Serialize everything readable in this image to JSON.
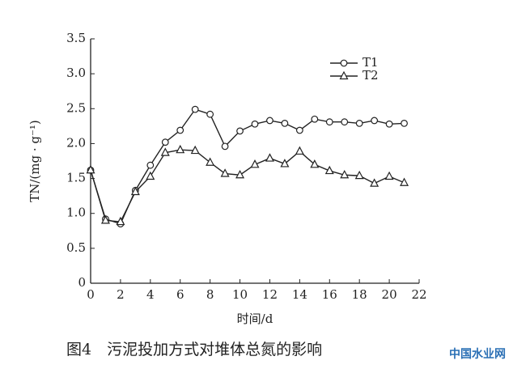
{
  "chart_data": {
    "type": "line",
    "caption": "图4　污泥投加方式对堆体总氮的影响",
    "xlabel": "时间/d",
    "ylabel": "TN/(mg · g⁻¹)",
    "watermark": "中国水业网",
    "x": [
      0,
      1,
      2,
      3,
      4,
      5,
      6,
      7,
      8,
      9,
      10,
      11,
      12,
      13,
      14,
      15,
      16,
      17,
      18,
      19,
      20,
      21
    ],
    "series": [
      {
        "name": "T1",
        "color": "#222222",
        "marker": "circle",
        "values": [
          1.62,
          0.92,
          0.85,
          1.33,
          1.69,
          2.02,
          2.19,
          2.49,
          2.42,
          1.96,
          2.18,
          2.28,
          2.33,
          2.29,
          2.19,
          2.35,
          2.31,
          2.31,
          2.29,
          2.33,
          2.28,
          2.29
        ]
      },
      {
        "name": "T2",
        "color": "#222222",
        "marker": "triangle",
        "values": [
          1.62,
          0.9,
          0.88,
          1.31,
          1.53,
          1.87,
          1.91,
          1.9,
          1.73,
          1.57,
          1.55,
          1.7,
          1.79,
          1.71,
          1.89,
          1.7,
          1.61,
          1.55,
          1.54,
          1.43,
          1.53,
          1.44
        ]
      }
    ],
    "xlim": [
      0,
      22
    ],
    "xticks": [
      0,
      2,
      4,
      6,
      8,
      10,
      12,
      14,
      16,
      18,
      20,
      22
    ],
    "ylim": [
      0,
      3.5
    ],
    "yticks": [
      0,
      0.5,
      {
        "value": 1,
        "label": "1.0"
      },
      1.5,
      {
        "value": 2,
        "label": "2.0"
      },
      2.5,
      {
        "value": 3,
        "label": "3.0"
      },
      3.5
    ],
    "legend": "upper-right",
    "grid": false
  }
}
